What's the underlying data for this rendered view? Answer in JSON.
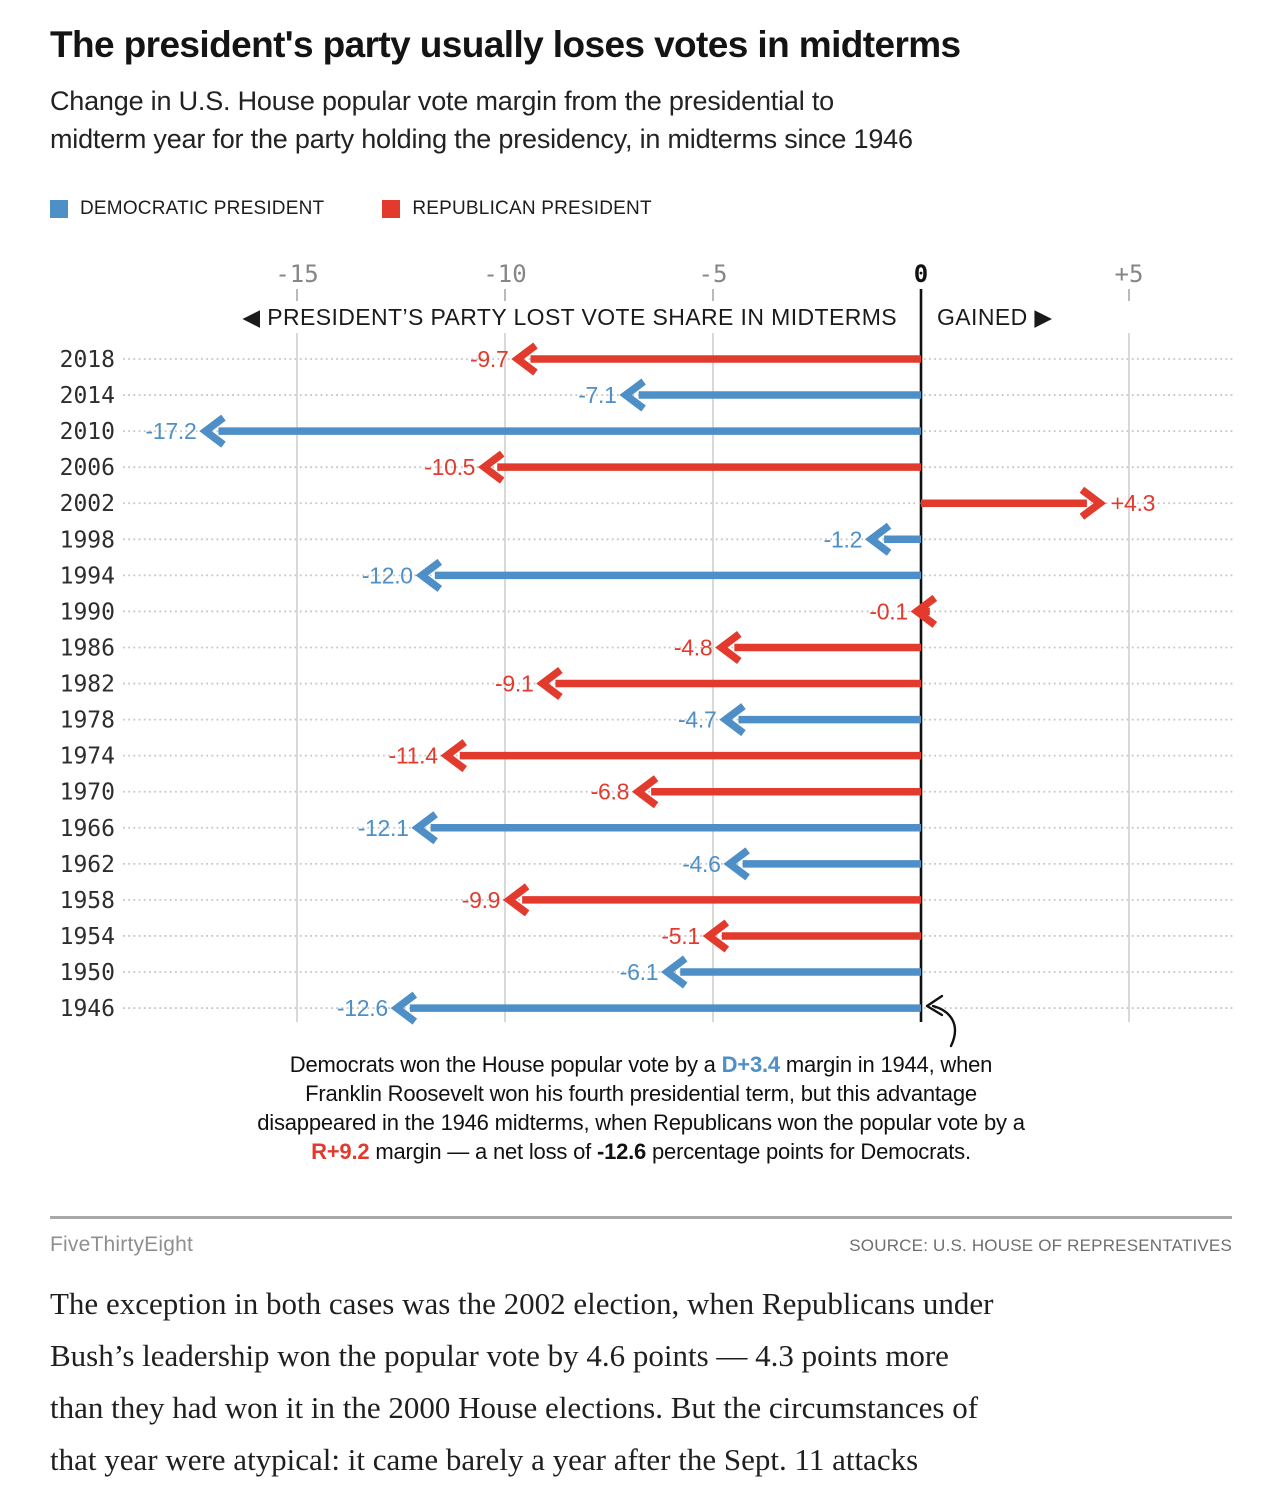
{
  "header": {
    "title": "The president's party usually loses votes in midterms",
    "subtitle_lines": [
      "Change in U.S. House popular vote margin from the presidential to",
      "midterm year for the party holding the presidency, in midterms since 1946"
    ]
  },
  "legend": {
    "items": [
      {
        "label": "DEMOCRATIC PRESIDENT",
        "party": "D",
        "color": "#4d8fc6"
      },
      {
        "label": "REPUBLICAN PRESIDENT",
        "party": "R",
        "color": "#e23b2e"
      }
    ]
  },
  "chart_data": {
    "type": "bar",
    "subtype": "horizontal-arrow-chart",
    "title": "Change in U.S. House popular vote margin from the presidential to midterm year for the party holding the presidency, in midterms since 1946",
    "xlim": [
      -19.5,
      7.5
    ],
    "grid": true,
    "x_ticks": [
      {
        "value": -15,
        "label": "-15"
      },
      {
        "value": -10,
        "label": "-10"
      },
      {
        "value": -5,
        "label": "-5"
      },
      {
        "value": 0,
        "label": "0"
      },
      {
        "value": 5,
        "label": "+5"
      }
    ],
    "direction_left_arrow_icon": "◀",
    "direction_left_label": "PRESIDENT’S PARTY LOST VOTE SHARE IN MIDTERMS",
    "direction_right_label": "GAINED",
    "direction_right_arrow_icon": "▶",
    "categories": [
      "2018",
      "2014",
      "2010",
      "2006",
      "2002",
      "1998",
      "1994",
      "1990",
      "1986",
      "1982",
      "1978",
      "1974",
      "1970",
      "1966",
      "1962",
      "1958",
      "1954",
      "1950",
      "1946"
    ],
    "rows": [
      {
        "year": "2018",
        "value": -9.7,
        "label": "-9.7",
        "party": "R"
      },
      {
        "year": "2014",
        "value": -7.1,
        "label": "-7.1",
        "party": "D"
      },
      {
        "year": "2010",
        "value": -17.2,
        "label": "-17.2",
        "party": "D"
      },
      {
        "year": "2006",
        "value": -10.5,
        "label": "-10.5",
        "party": "R"
      },
      {
        "year": "2002",
        "value": 4.3,
        "label": "+4.3",
        "party": "R"
      },
      {
        "year": "1998",
        "value": -1.2,
        "label": "-1.2",
        "party": "D"
      },
      {
        "year": "1994",
        "value": -12.0,
        "label": "-12.0",
        "party": "D"
      },
      {
        "year": "1990",
        "value": -0.1,
        "label": "-0.1",
        "party": "R"
      },
      {
        "year": "1986",
        "value": -4.8,
        "label": "-4.8",
        "party": "R"
      },
      {
        "year": "1982",
        "value": -9.1,
        "label": "-9.1",
        "party": "R"
      },
      {
        "year": "1978",
        "value": -4.7,
        "label": "-4.7",
        "party": "D"
      },
      {
        "year": "1974",
        "value": -11.4,
        "label": "-11.4",
        "party": "R"
      },
      {
        "year": "1970",
        "value": -6.8,
        "label": "-6.8",
        "party": "R"
      },
      {
        "year": "1966",
        "value": -12.1,
        "label": "-12.1",
        "party": "D"
      },
      {
        "year": "1962",
        "value": -4.6,
        "label": "-4.6",
        "party": "D"
      },
      {
        "year": "1958",
        "value": -9.9,
        "label": "-9.9",
        "party": "R"
      },
      {
        "year": "1954",
        "value": -5.1,
        "label": "-5.1",
        "party": "R"
      },
      {
        "year": "1950",
        "value": -6.1,
        "label": "-6.1",
        "party": "D"
      },
      {
        "year": "1946",
        "value": -12.6,
        "label": "-12.6",
        "party": "D"
      }
    ],
    "party_colors": {
      "D": "#4d8fc6",
      "R": "#e23b2e"
    }
  },
  "annotation": {
    "lines": [
      [
        {
          "text": "Democrats won the House popular vote by a "
        },
        {
          "text": "D+3.4",
          "color": "D",
          "bold": true
        },
        {
          "text": " margin in 1944, when"
        }
      ],
      [
        {
          "text": "Franklin Roosevelt won his fourth presidential term, but this advantage"
        }
      ],
      [
        {
          "text": "disappeared in the 1946 midterms, when Republicans won the popular vote by a"
        }
      ],
      [
        {
          "text": "R+9.2",
          "color": "R",
          "bold": true
        },
        {
          "text": " margin — a net loss of "
        },
        {
          "text": "-12.6",
          "bold": true
        },
        {
          "text": " percentage points for Democrats."
        }
      ]
    ]
  },
  "footer": {
    "brand": "FiveThirtyEight",
    "source": "SOURCE: U.S. HOUSE OF REPRESENTATIVES"
  },
  "article": {
    "lines": [
      "The exception in both cases was the 2002 election, when Republicans under",
      "Bush’s leadership won the popular vote by 4.6 points — 4.3 points more",
      "than they had won it in the 2000 House elections. But the circumstances of",
      "that year were atypical: it came barely a year after the Sept. 11 attacks"
    ]
  }
}
